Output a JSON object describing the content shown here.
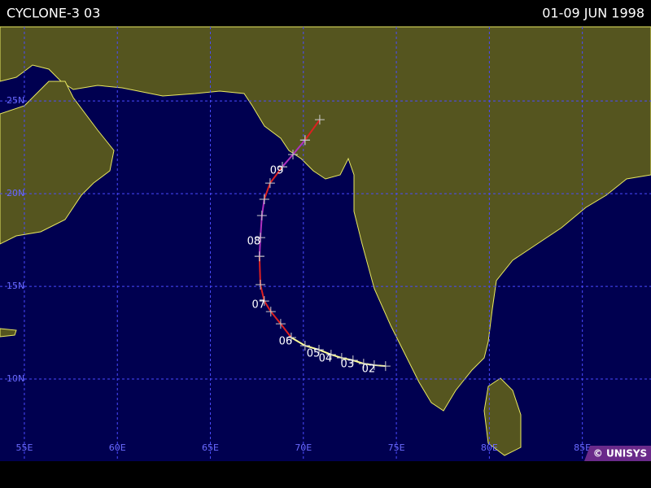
{
  "header": {
    "title": "CYCLONE-3 03",
    "dates": "01-09 JUN 1998"
  },
  "map": {
    "xlim": [
      53.69,
      88.69
    ],
    "ylim": [
      5.57,
      29.0
    ],
    "xticks": [
      {
        "value": 55,
        "label": "55E"
      },
      {
        "value": 60,
        "label": "60E"
      },
      {
        "value": 65,
        "label": "65E"
      },
      {
        "value": 70,
        "label": "70E"
      },
      {
        "value": 75,
        "label": "75E"
      },
      {
        "value": 80,
        "label": "80E"
      },
      {
        "value": 85,
        "label": "85E"
      }
    ],
    "yticks": [
      {
        "value": 25,
        "label": "25N"
      },
      {
        "value": 20,
        "label": "20N"
      },
      {
        "value": 15,
        "label": "15N"
      },
      {
        "value": 10,
        "label": "10N"
      }
    ],
    "grid": true,
    "track": [
      {
        "color": "#ffff99",
        "lon": [
          74.42,
          73.81,
          73.24,
          72.67,
          72.06,
          71.49,
          70.84,
          70.09,
          69.35
        ],
        "lat": [
          10.7,
          10.75,
          10.83,
          11.01,
          11.14,
          11.32,
          11.58,
          11.8,
          12.24
        ]
      },
      {
        "color": "#dd2020",
        "lon": [
          69.35,
          68.78,
          68.25,
          67.9,
          67.69,
          67.64
        ],
        "lat": [
          12.24,
          12.98,
          13.64,
          14.21,
          15.09,
          16.62
        ]
      },
      {
        "color": "#b030c0",
        "lon": [
          67.64,
          67.69,
          67.77,
          67.9
        ],
        "lat": [
          16.62,
          17.63,
          18.82,
          19.7
        ]
      },
      {
        "color": "#dd2020",
        "lon": [
          67.9,
          68.21,
          68.87
        ],
        "lat": [
          19.7,
          20.57,
          21.45
        ]
      },
      {
        "color": "#b030c0",
        "lon": [
          68.87,
          69.44,
          70.09
        ],
        "lat": [
          21.45,
          22.11,
          22.89
        ]
      },
      {
        "color": "#dd2020",
        "lon": [
          70.09,
          70.88
        ],
        "lat": [
          22.89,
          23.99
        ]
      }
    ],
    "days": [
      {
        "label": "02",
        "lon": 73.81,
        "lat": 10.75
      },
      {
        "label": "03",
        "lon": 72.67,
        "lat": 11.01
      },
      {
        "label": "04",
        "lon": 71.49,
        "lat": 11.32
      },
      {
        "label": "05",
        "lon": 70.84,
        "lat": 11.58
      },
      {
        "label": "06",
        "lon": 69.35,
        "lat": 12.24
      },
      {
        "label": "07",
        "lon": 67.9,
        "lat": 14.21
      },
      {
        "label": "08",
        "lon": 67.64,
        "lat": 17.63
      },
      {
        "label": "09",
        "lon": 68.87,
        "lat": 21.45
      }
    ]
  },
  "credit": "© UNISYS"
}
